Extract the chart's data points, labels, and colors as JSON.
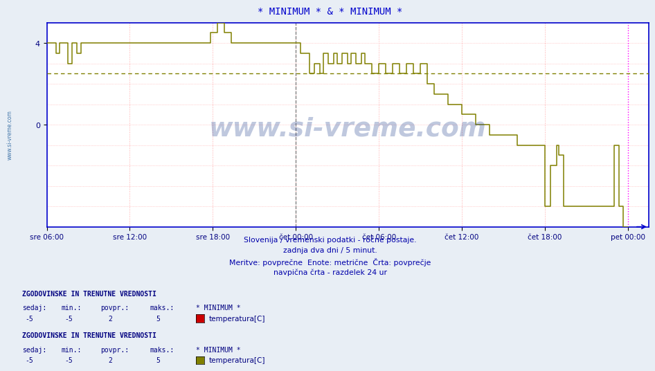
{
  "title": "* MINIMUM * & * MINIMUM *",
  "title_color": "#0000cc",
  "bg_color": "#e8eef5",
  "plot_bg_color": "#ffffff",
  "ylim": [
    -5,
    5
  ],
  "yticks": [
    0,
    4
  ],
  "line_color": "#808000",
  "avg_line_color": "#808000",
  "avg_value": 2.5,
  "vline_midnight_color": "#888888",
  "vline_end_color": "#ff00ff",
  "grid_v_color": "#ffaaaa",
  "grid_h_color": "#ffaaaa",
  "grid_h_minor_color": "#dddddd",
  "watermark": "www.si-vreme.com",
  "watermark_color": "#1a3a8a",
  "subtitle1": "Slovenija / vremenski podatki - ročne postaje.",
  "subtitle2": "zadnja dva dni / 5 minut.",
  "subtitle3": "Meritve: povprečne  Enote: metrične  Črta: povprečje",
  "subtitle4": "navpična črta - razdelek 24 ur",
  "subtitle_color": "#0000aa",
  "legend1_header": "ZGODOVINSKE IN TRENUTNE VREDNOSTI",
  "legend1_sedaj": "-5",
  "legend1_min": "-5",
  "legend1_povpr": "2",
  "legend1_maks": "5",
  "legend1_label": "* MINIMUM *",
  "legend1_series": "temperatura[C]",
  "legend1_color": "#cc0000",
  "legend2_header": "ZGODOVINSKE IN TRENUTNE VREDNOSTI",
  "legend2_sedaj": "-5",
  "legend2_min": "-5",
  "legend2_povpr": "2",
  "legend2_maks": "5",
  "legend2_label": "* MINIMUM *",
  "legend2_series": "temperatura[C]",
  "legend2_color": "#808000",
  "xtick_labels": [
    "sre 06:00",
    "sre 12:00",
    "sre 18:00",
    "čet 00:00",
    "čet 06:00",
    "čet 12:00",
    "čet 18:00",
    "pet 00:00"
  ],
  "axis_color": "#0000cc",
  "tick_color": "#000080"
}
